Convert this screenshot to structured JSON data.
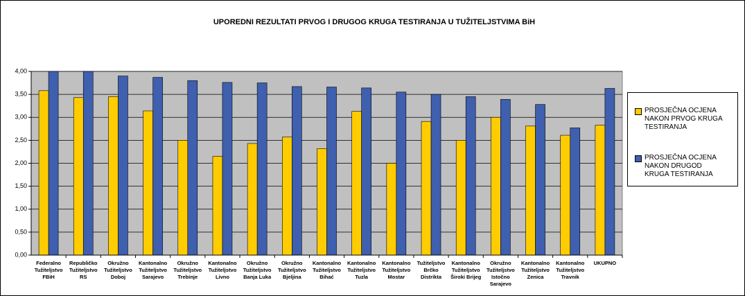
{
  "chart_data": {
    "type": "bar",
    "title": "UPOREDNI REZULTATI PRVOG I DRUGOG KRUGA TESTIRANJA U TUŽITELJSTVIMA BiH",
    "categories": [
      "Federalno\nTužiteljstvo\nFBiH",
      "Republičko\nTužiteljstvo\nRS",
      "Okružno\nTužiteljstvo\nDoboj",
      "Kantonalno\nTužiteljstvo\nSarajevo",
      "Okružno\nTužiteljstvo\nTrebinje",
      "Kantonalno\nTužiteljstvo\nLivno",
      "Okružno\nTužiteljstvo\nBanja Luka",
      "Okružno\nTužiteljstvo\nBjeljina",
      "Kantonalno\nTužiteljstvo\nBihać",
      "Kantonalno\nTužiteljstvo\nTuzla",
      "Kantonalno\nTužiteljstvo\nMostar",
      "Tužiteljstvo\nBrčko\nDistrikta",
      "Kantonalno\nTužiteljstvo\nŠiroki Brijeg",
      "Okružno\nTužiteljstvo\nIstočno\nSarajevo",
      "Kantonalno\nTužiteljstvo\nZenica",
      "Kantonalno\nTužiteljstvo\nTravnik",
      "UKUPNO"
    ],
    "series": [
      {
        "name": "PROSJEČNA OCJENA\nNAKON PRVOG KRUGA\nTESTIRANJA",
        "color": "#ffcc00",
        "values": [
          3.58,
          3.43,
          3.45,
          3.14,
          2.5,
          2.15,
          2.43,
          2.57,
          2.32,
          3.13,
          2.0,
          2.91,
          2.5,
          3.0,
          2.81,
          2.61,
          2.83
        ]
      },
      {
        "name": "PROSJEČNA OCJENA\nNAKON DRUGOD\nKRUGA TESTIRANJA",
        "color": "#3f5faf",
        "values": [
          4.0,
          4.0,
          3.9,
          3.87,
          3.8,
          3.76,
          3.75,
          3.67,
          3.66,
          3.64,
          3.55,
          3.5,
          3.45,
          3.39,
          3.28,
          2.77,
          3.63
        ]
      }
    ],
    "ylim": [
      0,
      4
    ],
    "yticks": [
      {
        "value": 0,
        "label": "0,00"
      },
      {
        "value": 0.5,
        "label": "0,50"
      },
      {
        "value": 1,
        "label": "1,00"
      },
      {
        "value": 1.5,
        "label": "1,50"
      },
      {
        "value": 2,
        "label": "2,00"
      },
      {
        "value": 2.5,
        "label": "2,50"
      },
      {
        "value": 3,
        "label": "3,00"
      },
      {
        "value": 3.5,
        "label": "3,50"
      },
      {
        "value": 4,
        "label": "4,00"
      }
    ],
    "grid": true
  }
}
